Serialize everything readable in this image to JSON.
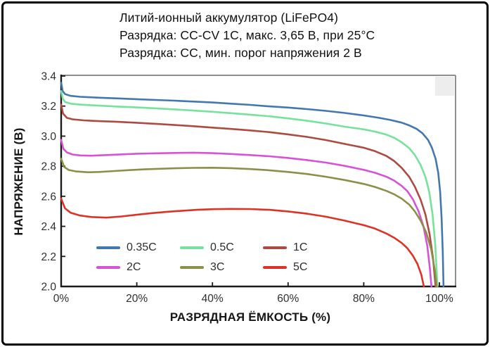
{
  "panel": {
    "background": "#ffffff",
    "border_color": "#000000"
  },
  "title_block": {
    "lines": [
      "Литий-ионный аккумулятор (LiFePO4)",
      "Разрядка: CC-CV 1C, макс. 3,65 В, при 25°C",
      "Разрядка: CC, мин. порог напряжения 2 В"
    ]
  },
  "appearance": {
    "axis_color": "#1a1a1a",
    "frame_color": "#8e8e8e",
    "tick_text_color": "#2f2f2f",
    "watermark_color": "#ededed"
  },
  "chart_data": {
    "type": "line",
    "title": "Литий-ионный аккумулятор (LiFePO4)",
    "subtitle_lines": [
      "Разрядка: CC-CV 1C, макс. 3,65 В, при 25°C",
      "Разрядка: CC, мин. порог напряжения 2 В"
    ],
    "xlabel": "РАЗРЯДНАЯ ЁМКОСТЬ (%)",
    "ylabel": "НАПРЯЖЕНИЕ (В)",
    "xlim": [
      0,
      104.3
    ],
    "ylim": [
      2.0,
      3.4
    ],
    "grid": false,
    "legend_position": "inside-lower-left",
    "x_ticks": [
      0,
      20,
      40,
      60,
      80,
      100
    ],
    "x_tick_labels": [
      "0%",
      "20%",
      "40%",
      "60%",
      "80%",
      "100%"
    ],
    "y_ticks": [
      3.4,
      3.2,
      3.0,
      2.8,
      2.6,
      2.4,
      2.2,
      2.0
    ],
    "y_tick_labels": [
      "3.4",
      "3.2",
      "3.0",
      "2.8",
      "2.6",
      "2.4",
      "2.2",
      "2.0"
    ],
    "series": [
      {
        "name": "0.35C",
        "color": "#4377b0",
        "points": [
          [
            0,
            3.355
          ],
          [
            0.4,
            3.3
          ],
          [
            1,
            3.28
          ],
          [
            2.5,
            3.268
          ],
          [
            5,
            3.262
          ],
          [
            10,
            3.256
          ],
          [
            15,
            3.251
          ],
          [
            20,
            3.246
          ],
          [
            25,
            3.241
          ],
          [
            30,
            3.236
          ],
          [
            35,
            3.23
          ],
          [
            40,
            3.224
          ],
          [
            45,
            3.216
          ],
          [
            50,
            3.208
          ],
          [
            55,
            3.198
          ],
          [
            60,
            3.19
          ],
          [
            65,
            3.18
          ],
          [
            70,
            3.168
          ],
          [
            75,
            3.154
          ],
          [
            80,
            3.138
          ],
          [
            84,
            3.122
          ],
          [
            87,
            3.108
          ],
          [
            90,
            3.09
          ],
          [
            92,
            3.072
          ],
          [
            94,
            3.048
          ],
          [
            95.5,
            3.02
          ],
          [
            97,
            2.975
          ],
          [
            98,
            2.925
          ],
          [
            99,
            2.85
          ],
          [
            99.7,
            2.755
          ],
          [
            100.2,
            2.63
          ],
          [
            100.6,
            2.45
          ],
          [
            100.9,
            2.23
          ],
          [
            101.1,
            2.0
          ]
        ]
      },
      {
        "name": "0.5C",
        "color": "#76e29b",
        "points": [
          [
            0,
            3.3
          ],
          [
            0.4,
            3.25
          ],
          [
            1,
            3.228
          ],
          [
            2.5,
            3.216
          ],
          [
            5,
            3.21
          ],
          [
            10,
            3.203
          ],
          [
            15,
            3.197
          ],
          [
            20,
            3.191
          ],
          [
            25,
            3.185
          ],
          [
            30,
            3.178
          ],
          [
            35,
            3.17
          ],
          [
            40,
            3.162
          ],
          [
            45,
            3.153
          ],
          [
            50,
            3.143
          ],
          [
            55,
            3.132
          ],
          [
            60,
            3.118
          ],
          [
            65,
            3.102
          ],
          [
            70,
            3.084
          ],
          [
            75,
            3.063
          ],
          [
            80,
            3.045
          ],
          [
            83,
            3.03
          ],
          [
            86,
            3.01
          ],
          [
            88,
            2.99
          ],
          [
            90,
            2.96
          ],
          [
            92,
            2.92
          ],
          [
            93.5,
            2.875
          ],
          [
            95,
            2.81
          ],
          [
            96.3,
            2.73
          ],
          [
            97.3,
            2.63
          ],
          [
            98.2,
            2.48
          ],
          [
            98.9,
            2.28
          ],
          [
            99.5,
            2.0
          ]
        ]
      },
      {
        "name": "1C",
        "color": "#ad4a41",
        "points": [
          [
            0,
            3.21
          ],
          [
            0.5,
            3.15
          ],
          [
            1.5,
            3.122
          ],
          [
            3,
            3.112
          ],
          [
            6,
            3.105
          ],
          [
            10,
            3.1
          ],
          [
            15,
            3.095
          ],
          [
            20,
            3.089
          ],
          [
            25,
            3.082
          ],
          [
            30,
            3.074
          ],
          [
            35,
            3.066
          ],
          [
            40,
            3.057
          ],
          [
            45,
            3.048
          ],
          [
            50,
            3.038
          ],
          [
            55,
            3.027
          ],
          [
            60,
            3.012
          ],
          [
            65,
            2.995
          ],
          [
            70,
            2.974
          ],
          [
            75,
            2.948
          ],
          [
            80,
            2.923
          ],
          [
            83,
            2.9
          ],
          [
            86,
            2.868
          ],
          [
            88,
            2.836
          ],
          [
            90,
            2.79
          ],
          [
            92,
            2.73
          ],
          [
            93.5,
            2.665
          ],
          [
            95,
            2.58
          ],
          [
            96.3,
            2.48
          ],
          [
            97.4,
            2.35
          ],
          [
            98.3,
            2.19
          ],
          [
            99.0,
            2.0
          ]
        ]
      },
      {
        "name": "2C",
        "color": "#d852d8",
        "points": [
          [
            0,
            2.975
          ],
          [
            0.6,
            2.915
          ],
          [
            1.5,
            2.892
          ],
          [
            3,
            2.878
          ],
          [
            5,
            2.872
          ],
          [
            8,
            2.87
          ],
          [
            12,
            2.874
          ],
          [
            16,
            2.879
          ],
          [
            20,
            2.883
          ],
          [
            25,
            2.886
          ],
          [
            30,
            2.888
          ],
          [
            35,
            2.89
          ],
          [
            40,
            2.887
          ],
          [
            45,
            2.881
          ],
          [
            50,
            2.874
          ],
          [
            55,
            2.866
          ],
          [
            60,
            2.855
          ],
          [
            65,
            2.841
          ],
          [
            70,
            2.824
          ],
          [
            75,
            2.802
          ],
          [
            80,
            2.776
          ],
          [
            83,
            2.756
          ],
          [
            86,
            2.73
          ],
          [
            88,
            2.705
          ],
          [
            90,
            2.67
          ],
          [
            91.5,
            2.635
          ],
          [
            93,
            2.58
          ],
          [
            94.5,
            2.5
          ],
          [
            95.8,
            2.4
          ],
          [
            96.8,
            2.27
          ],
          [
            97.5,
            2.12
          ],
          [
            97.9,
            2.0
          ]
        ]
      },
      {
        "name": "3C",
        "color": "#8b8f47",
        "points": [
          [
            0,
            2.85
          ],
          [
            0.8,
            2.795
          ],
          [
            2,
            2.775
          ],
          [
            4,
            2.765
          ],
          [
            7,
            2.76
          ],
          [
            10,
            2.762
          ],
          [
            14,
            2.768
          ],
          [
            18,
            2.774
          ],
          [
            22,
            2.779
          ],
          [
            26,
            2.783
          ],
          [
            30,
            2.786
          ],
          [
            35,
            2.789
          ],
          [
            40,
            2.79
          ],
          [
            45,
            2.787
          ],
          [
            50,
            2.781
          ],
          [
            55,
            2.773
          ],
          [
            60,
            2.762
          ],
          [
            65,
            2.748
          ],
          [
            70,
            2.73
          ],
          [
            75,
            2.708
          ],
          [
            80,
            2.682
          ],
          [
            83,
            2.662
          ],
          [
            86,
            2.636
          ],
          [
            88,
            2.614
          ],
          [
            90,
            2.585
          ],
          [
            92,
            2.545
          ],
          [
            93.5,
            2.5
          ],
          [
            95,
            2.44
          ],
          [
            96.5,
            2.36
          ],
          [
            97.8,
            2.25
          ],
          [
            98.8,
            2.11
          ],
          [
            99.3,
            2.0
          ]
        ]
      },
      {
        "name": "5C",
        "color": "#dd3327",
        "points": [
          [
            0,
            2.585
          ],
          [
            1,
            2.52
          ],
          [
            2.5,
            2.49
          ],
          [
            5,
            2.472
          ],
          [
            8,
            2.462
          ],
          [
            12,
            2.458
          ],
          [
            16,
            2.466
          ],
          [
            20,
            2.477
          ],
          [
            24,
            2.488
          ],
          [
            28,
            2.497
          ],
          [
            32,
            2.504
          ],
          [
            36,
            2.51
          ],
          [
            40,
            2.514
          ],
          [
            45,
            2.516
          ],
          [
            50,
            2.515
          ],
          [
            55,
            2.51
          ],
          [
            60,
            2.499
          ],
          [
            65,
            2.484
          ],
          [
            70,
            2.464
          ],
          [
            75,
            2.438
          ],
          [
            80,
            2.408
          ],
          [
            83,
            2.385
          ],
          [
            86,
            2.352
          ],
          [
            88,
            2.325
          ],
          [
            90,
            2.29
          ],
          [
            91.5,
            2.255
          ],
          [
            93,
            2.205
          ],
          [
            94.2,
            2.15
          ],
          [
            95.2,
            2.08
          ],
          [
            95.9,
            2.0
          ]
        ]
      }
    ]
  }
}
